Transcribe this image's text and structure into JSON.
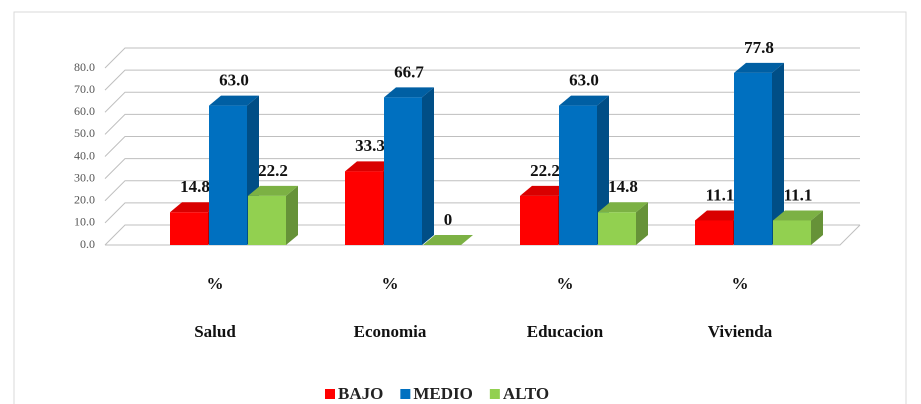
{
  "chart_data": {
    "type": "bar3d",
    "categories": [
      "Salud",
      "Economia",
      "Educacion",
      "Vivienda"
    ],
    "category_unit": "%",
    "series": [
      {
        "name": "BAJO",
        "color": "#ff0000",
        "values": [
          14.8,
          33.3,
          22.2,
          11.1
        ],
        "value_labels": [
          "14.8",
          "33.3",
          "22.2",
          "11.1"
        ]
      },
      {
        "name": "MEDIO",
        "color": "#0070c0",
        "values": [
          63.0,
          66.7,
          63.0,
          77.8
        ],
        "value_labels": [
          "63.0",
          "66.7",
          "63.0",
          "77.8"
        ]
      },
      {
        "name": "ALTO",
        "color": "#92d050",
        "values": [
          22.2,
          0,
          14.8,
          11.1
        ],
        "value_labels": [
          "22.2",
          "0",
          "14.8",
          "11.1"
        ]
      }
    ],
    "ylim": [
      0,
      80
    ],
    "yticks": [
      {
        "value": 0,
        "label": "0.0"
      },
      {
        "value": 10,
        "label": "10.0"
      },
      {
        "value": 20,
        "label": "20.0"
      },
      {
        "value": 30,
        "label": "30.0"
      },
      {
        "value": 40,
        "label": "40.0"
      },
      {
        "value": 50,
        "label": "50.0"
      },
      {
        "value": 60,
        "label": "60.0"
      },
      {
        "value": 70,
        "label": "70.0"
      },
      {
        "value": 80,
        "label": "80.0"
      }
    ],
    "grid": true,
    "legend": "bottom"
  }
}
